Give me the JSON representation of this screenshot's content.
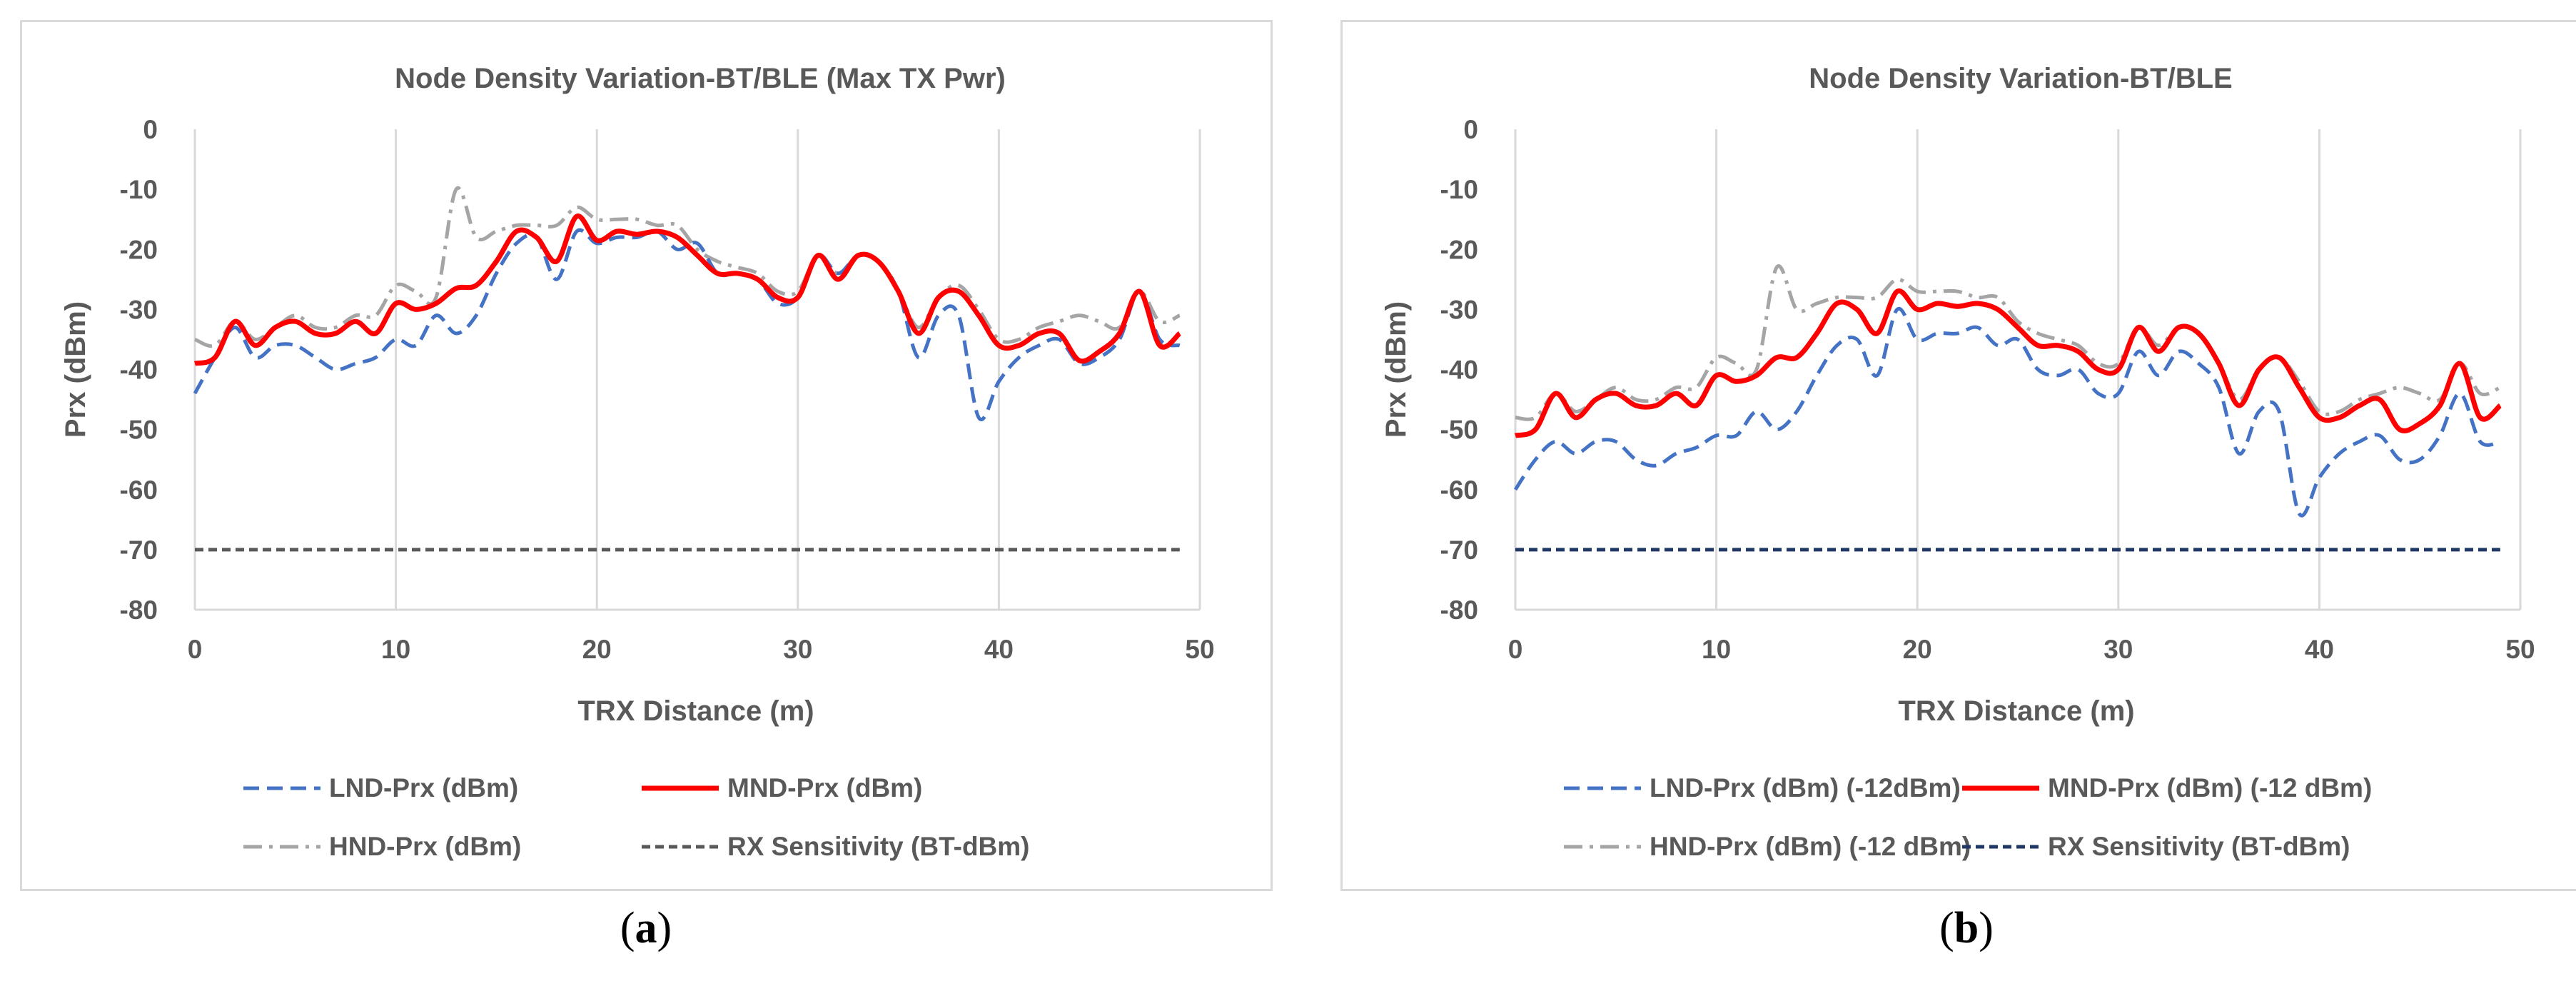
{
  "captions": [
    {
      "open": "(",
      "letter": "a",
      "close": ")"
    },
    {
      "open": "(",
      "letter": "b",
      "close": ")"
    }
  ],
  "chart_data": [
    {
      "type": "line",
      "title": "Node Density Variation-BT/BLE (Max TX Pwr)",
      "xlabel": "TRX Distance (m)",
      "ylabel": "Prx (dBm)",
      "xlim": [
        0,
        50
      ],
      "ylim": [
        -80,
        0
      ],
      "xticks": [
        0,
        10,
        20,
        30,
        40,
        50
      ],
      "yticks": [
        0,
        -10,
        -20,
        -30,
        -40,
        -50,
        -60,
        -70,
        -80
      ],
      "grid": "vertical",
      "legend_position": "bottom",
      "x": [
        0,
        1,
        2,
        3,
        4,
        5,
        6,
        7,
        8,
        9,
        10,
        11,
        12,
        13,
        14,
        15,
        16,
        17,
        18,
        19,
        20,
        21,
        22,
        23,
        24,
        25,
        26,
        27,
        28,
        29,
        30,
        31,
        32,
        33,
        34,
        35,
        36,
        37,
        38,
        39,
        40,
        41,
        42,
        43,
        44,
        45,
        46,
        47,
        48,
        49
      ],
      "series": [
        {
          "name": "LND-Prx (dBm)",
          "color": "#4472c4",
          "dash": "dash",
          "values": [
            -44,
            -38,
            -33,
            -38,
            -36,
            -36,
            -38,
            -40,
            -39,
            -38,
            -35,
            -36,
            -31,
            -34,
            -31,
            -24,
            -19,
            -18,
            -25,
            -17,
            -19,
            -18,
            -18,
            -17,
            -20,
            -19,
            -24,
            -24,
            -25,
            -29,
            -28,
            -21,
            -24,
            -21,
            -22,
            -27,
            -38,
            -31,
            -31,
            -48,
            -42,
            -38,
            -36,
            -35,
            -39,
            -38,
            -35,
            -27,
            -35,
            -36
          ]
        },
        {
          "name": "MND-Prx (dBm)",
          "color": "#ff0000",
          "dash": "solid",
          "values": [
            -39,
            -38,
            -32,
            -36,
            -33,
            -32,
            -34,
            -34,
            -32,
            -34,
            -29,
            -30,
            -29,
            -26.5,
            -26,
            -22,
            -17,
            -18,
            -22,
            -14.5,
            -18.5,
            -17,
            -17.5,
            -17,
            -18,
            -21,
            -24,
            -24,
            -25,
            -28,
            -28,
            -21,
            -25,
            -21,
            -22,
            -27,
            -34,
            -28,
            -27,
            -31,
            -36,
            -36,
            -34,
            -34,
            -38.5,
            -37,
            -34,
            -27,
            -36,
            -34
          ]
        },
        {
          "name": "HND-Prx (dBm)",
          "color": "#a5a5a5",
          "dash": "dashdot",
          "values": [
            -35,
            -36,
            -32,
            -35,
            -33,
            -31,
            -33,
            -33,
            -31,
            -31,
            -26,
            -27,
            -28,
            -10,
            -18,
            -17,
            -16,
            -16,
            -16,
            -13,
            -15,
            -15,
            -15,
            -16,
            -16,
            -20,
            -22,
            -23,
            -24,
            -27,
            -27,
            -21,
            -24,
            -21,
            -22,
            -27,
            -33,
            -28,
            -26,
            -30,
            -35,
            -35,
            -33,
            -32,
            -31,
            -32,
            -33,
            -27,
            -32,
            -31
          ]
        },
        {
          "name": "RX Sensitivity (BT-dBm)",
          "color": "#595959",
          "dash": "shortdash",
          "values": [
            -70,
            -70,
            -70,
            -70,
            -70,
            -70,
            -70,
            -70,
            -70,
            -70,
            -70,
            -70,
            -70,
            -70,
            -70,
            -70,
            -70,
            -70,
            -70,
            -70,
            -70,
            -70,
            -70,
            -70,
            -70,
            -70,
            -70,
            -70,
            -70,
            -70,
            -70,
            -70,
            -70,
            -70,
            -70,
            -70,
            -70,
            -70,
            -70,
            -70,
            -70,
            -70,
            -70,
            -70,
            -70,
            -70,
            -70,
            -70,
            -70,
            -70
          ]
        }
      ]
    },
    {
      "type": "line",
      "title": "Node Density Variation-BT/BLE",
      "xlabel": "TRX Distance (m)",
      "ylabel": "Prx (dBm)",
      "xlim": [
        0,
        50
      ],
      "ylim": [
        -80,
        0
      ],
      "xticks": [
        0,
        10,
        20,
        30,
        40,
        50
      ],
      "yticks": [
        0,
        -10,
        -20,
        -30,
        -40,
        -50,
        -60,
        -70,
        -80
      ],
      "grid": "vertical",
      "legend_position": "bottom",
      "x": [
        0,
        1,
        2,
        3,
        4,
        5,
        6,
        7,
        8,
        9,
        10,
        11,
        12,
        13,
        14,
        15,
        16,
        17,
        18,
        19,
        20,
        21,
        22,
        23,
        24,
        25,
        26,
        27,
        28,
        29,
        30,
        31,
        32,
        33,
        34,
        35,
        36,
        37,
        38,
        39,
        40,
        41,
        42,
        43,
        44,
        45,
        46,
        47,
        48,
        49
      ],
      "series": [
        {
          "name": "LND-Prx (dBm) (-12dBm)",
          "color": "#4472c4",
          "dash": "dash",
          "values": [
            -60,
            -55,
            -52,
            -54,
            -52,
            -52,
            -55,
            -56,
            -54,
            -53,
            -51,
            -51,
            -47,
            -50,
            -47,
            -41,
            -36,
            -35,
            -41,
            -30,
            -35,
            -34,
            -34,
            -33,
            -36,
            -35,
            -40,
            -41,
            -40,
            -44,
            -44,
            -37,
            -41,
            -37,
            -39,
            -43,
            -54,
            -47,
            -47,
            -64,
            -58,
            -54,
            -52,
            -51,
            -55,
            -55,
            -51,
            -44,
            -52,
            -52
          ]
        },
        {
          "name": "MND-Prx (dBm) (-12 dBm)",
          "color": "#ff0000",
          "dash": "solid",
          "values": [
            -51,
            -50,
            -44,
            -48,
            -45,
            -44,
            -46,
            -46,
            -44,
            -46,
            -41,
            -42,
            -41,
            -38,
            -38,
            -34,
            -29,
            -30,
            -34,
            -27,
            -30,
            -29,
            -29.5,
            -29,
            -30,
            -33,
            -36,
            -36,
            -37,
            -40,
            -40,
            -33,
            -37,
            -33,
            -34,
            -39,
            -46,
            -40,
            -38,
            -43,
            -48,
            -48,
            -46,
            -45,
            -50,
            -49,
            -46,
            -39,
            -48,
            -46
          ]
        },
        {
          "name": "HND-Prx (dBm) (-12 dBm)",
          "color": "#a5a5a5",
          "dash": "dashdot",
          "values": [
            -48,
            -48,
            -44,
            -47,
            -45,
            -43,
            -45,
            -45,
            -43,
            -43,
            -38,
            -39,
            -40,
            -23,
            -30,
            -29,
            -28,
            -28,
            -28,
            -25,
            -27,
            -27,
            -27,
            -28,
            -28,
            -32,
            -34,
            -35,
            -36,
            -39,
            -39,
            -33,
            -36,
            -33,
            -34,
            -39,
            -45,
            -40,
            -38,
            -42,
            -47,
            -47,
            -45,
            -44,
            -43,
            -44,
            -45,
            -39,
            -44,
            -43
          ]
        },
        {
          "name": "RX Sensitivity (BT-dBm)",
          "color": "#1f3864",
          "dash": "shortdash",
          "values": [
            -70,
            -70,
            -70,
            -70,
            -70,
            -70,
            -70,
            -70,
            -70,
            -70,
            -70,
            -70,
            -70,
            -70,
            -70,
            -70,
            -70,
            -70,
            -70,
            -70,
            -70,
            -70,
            -70,
            -70,
            -70,
            -70,
            -70,
            -70,
            -70,
            -70,
            -70,
            -70,
            -70,
            -70,
            -70,
            -70,
            -70,
            -70,
            -70,
            -70,
            -70,
            -70,
            -70,
            -70,
            -70,
            -70,
            -70,
            -70,
            -70,
            -70
          ]
        }
      ]
    }
  ]
}
